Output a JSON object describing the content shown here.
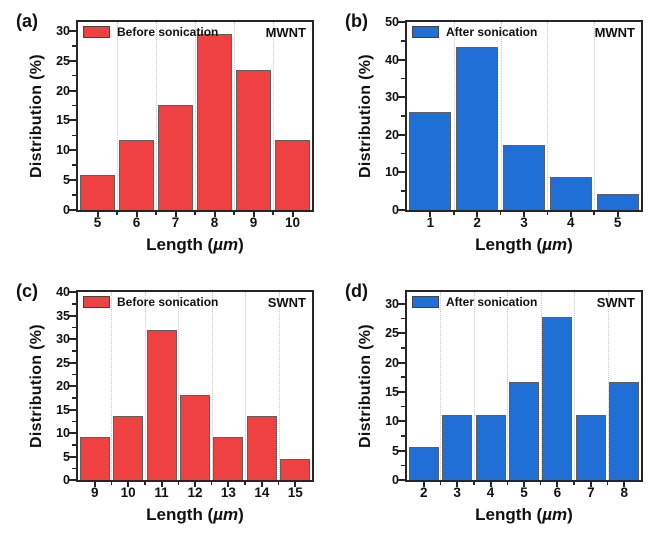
{
  "figure": {
    "ylabel": "Distribution (%)",
    "xlabel": "Length (µm)"
  },
  "colors": {
    "red": "#EF4141",
    "blue": "#1F6FD6",
    "bar_border": "#5F5F5F",
    "frame": "#262626",
    "grid": "#C9C9C9",
    "text": "#111111"
  },
  "chart_data": [
    {
      "type": "bar",
      "panel": "(a)",
      "corner_label": "MWNT",
      "legend": "Before sonication",
      "color": "#EF4141",
      "categories": [
        5,
        6,
        7,
        8,
        9,
        10
      ],
      "values": [
        5.88,
        11.76,
        17.65,
        29.41,
        23.53,
        11.76
      ],
      "xlabel": "Length (µm)",
      "ylabel": "Distribution (%)",
      "ylim": [
        0,
        31.5
      ],
      "yticks": [
        0,
        5,
        10,
        15,
        20,
        25,
        30
      ],
      "grid": "vertical-dotted",
      "legend_position": "top-left"
    },
    {
      "type": "bar",
      "panel": "(b)",
      "corner_label": "MWNT",
      "legend": "After sonication",
      "color": "#1F6FD6",
      "categories": [
        1,
        2,
        3,
        4,
        5
      ],
      "values": [
        26.09,
        43.48,
        17.39,
        8.7,
        4.35
      ],
      "xlabel": "Length (µm)",
      "ylabel": "Distribution (%)",
      "ylim": [
        0,
        50
      ],
      "yticks": [
        0,
        10,
        20,
        30,
        40,
        50
      ],
      "grid": "vertical-dotted",
      "legend_position": "top-left"
    },
    {
      "type": "bar",
      "panel": "(c)",
      "corner_label": "SWNT",
      "legend": "Before sonication",
      "color": "#EF4141",
      "categories": [
        9,
        10,
        11,
        12,
        13,
        14,
        15
      ],
      "values": [
        9.09,
        13.64,
        31.82,
        18.18,
        9.09,
        13.64,
        4.55
      ],
      "xlabel": "Length (µm)",
      "ylabel": "Distribution (%)",
      "ylim": [
        0,
        40
      ],
      "yticks": [
        0,
        5,
        10,
        15,
        20,
        25,
        30,
        35,
        40
      ],
      "grid": "vertical-dotted",
      "legend_position": "top-left"
    },
    {
      "type": "bar",
      "panel": "(d)",
      "corner_label": "SWNT",
      "legend": "After sonication",
      "color": "#1F6FD6",
      "categories": [
        2,
        3,
        4,
        5,
        6,
        7,
        8
      ],
      "values": [
        5.56,
        11.11,
        11.11,
        16.67,
        27.78,
        11.11,
        16.67
      ],
      "xlabel": "Length (µm)",
      "ylabel": "Distribution (%)",
      "ylim": [
        0,
        32
      ],
      "yticks": [
        0,
        5,
        10,
        15,
        20,
        25,
        30
      ],
      "grid": "vertical-dotted",
      "legend_position": "top-left"
    }
  ]
}
